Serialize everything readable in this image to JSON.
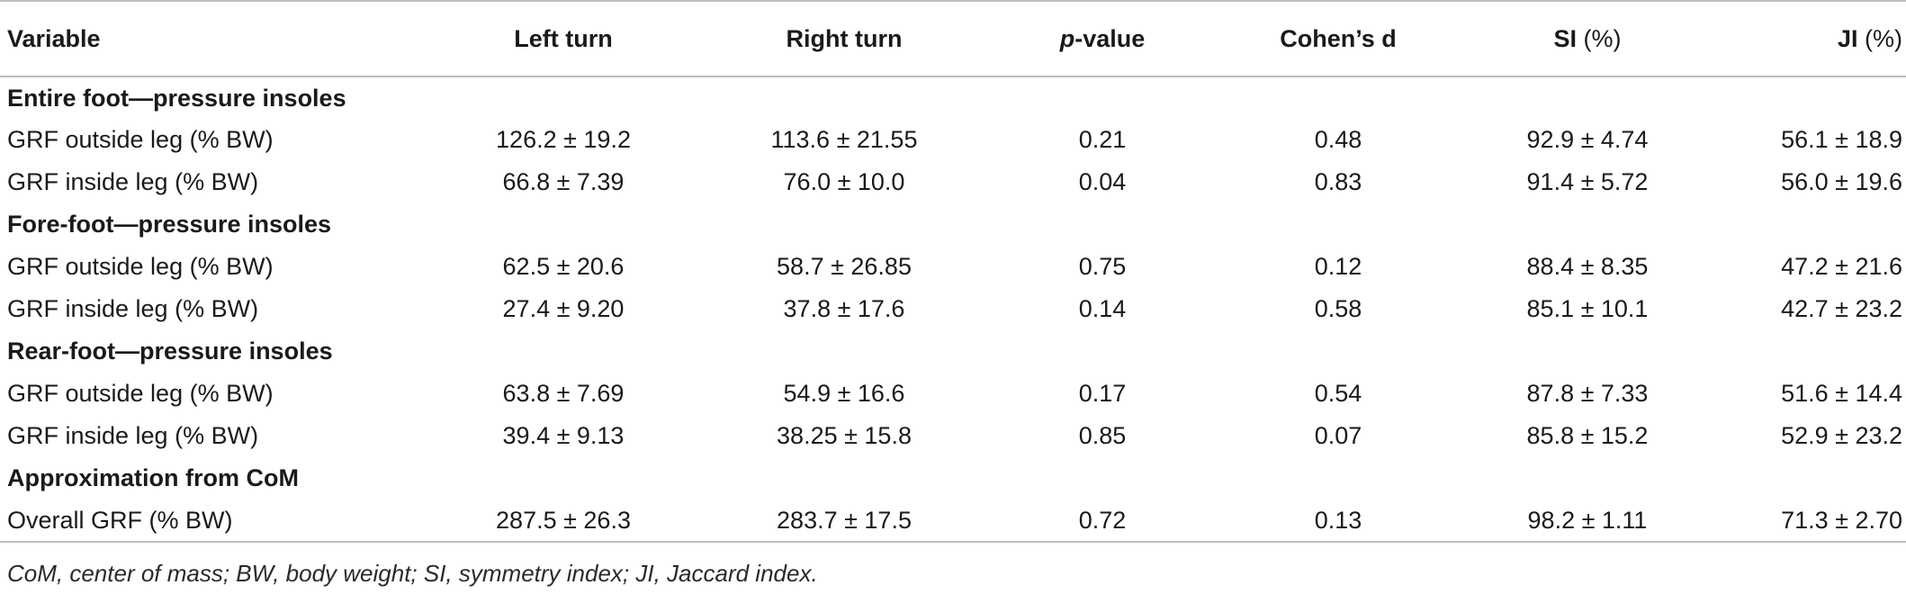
{
  "header": {
    "variable": "Variable",
    "left_turn": "Left turn",
    "right_turn": "Right turn",
    "p_value_italic": "p",
    "p_value_rest": "-value",
    "cohens_d": "Cohen’s d",
    "si_bold": "SI",
    "si_unit": " (%)",
    "ji_bold": "JI",
    "ji_unit": " (%)"
  },
  "sections": [
    {
      "title": "Entire foot—pressure insoles",
      "rows": [
        {
          "variable": "GRF outside leg (% BW)",
          "left": "126.2 ± 19.2",
          "right": "113.6 ± 21.55",
          "p": "0.21",
          "d": "0.48",
          "si": "92.9 ± 4.74",
          "ji": "56.1 ± 18.9"
        },
        {
          "variable": "GRF inside leg (% BW)",
          "left": "66.8 ± 7.39",
          "right": "76.0 ± 10.0",
          "p": "0.04",
          "d": "0.83",
          "si": "91.4 ± 5.72",
          "ji": "56.0 ± 19.6"
        }
      ]
    },
    {
      "title": "Fore-foot—pressure insoles",
      "rows": [
        {
          "variable": "GRF outside leg (% BW)",
          "left": "62.5 ± 20.6",
          "right": "58.7 ± 26.85",
          "p": "0.75",
          "d": "0.12",
          "si": "88.4 ± 8.35",
          "ji": "47.2 ± 21.6"
        },
        {
          "variable": "GRF inside leg (% BW)",
          "left": "27.4 ± 9.20",
          "right": "37.8 ± 17.6",
          "p": "0.14",
          "d": "0.58",
          "si": "85.1 ± 10.1",
          "ji": "42.7 ± 23.2"
        }
      ]
    },
    {
      "title": "Rear-foot—pressure insoles",
      "rows": [
        {
          "variable": "GRF outside leg (% BW)",
          "left": "63.8 ± 7.69",
          "right": "54.9 ± 16.6",
          "p": "0.17",
          "d": "0.54",
          "si": "87.8 ± 7.33",
          "ji": "51.6 ± 14.4"
        },
        {
          "variable": "GRF inside leg (% BW)",
          "left": "39.4 ± 9.13",
          "right": "38.25 ± 15.8",
          "p": "0.85",
          "d": "0.07",
          "si": "85.8 ± 15.2",
          "ji": "52.9 ± 23.2"
        }
      ]
    },
    {
      "title": "Approximation from CoM",
      "rows": [
        {
          "variable": "Overall GRF (% BW)",
          "left": "287.5 ± 26.3",
          "right": "283.7 ± 17.5",
          "p": "0.72",
          "d": "0.13",
          "si": "98.2 ± 1.11",
          "ji": "71.3 ± 2.70"
        }
      ]
    }
  ],
  "footnote": "CoM, center of mass; BW, body weight; SI, symmetry index; JI, Jaccard index."
}
